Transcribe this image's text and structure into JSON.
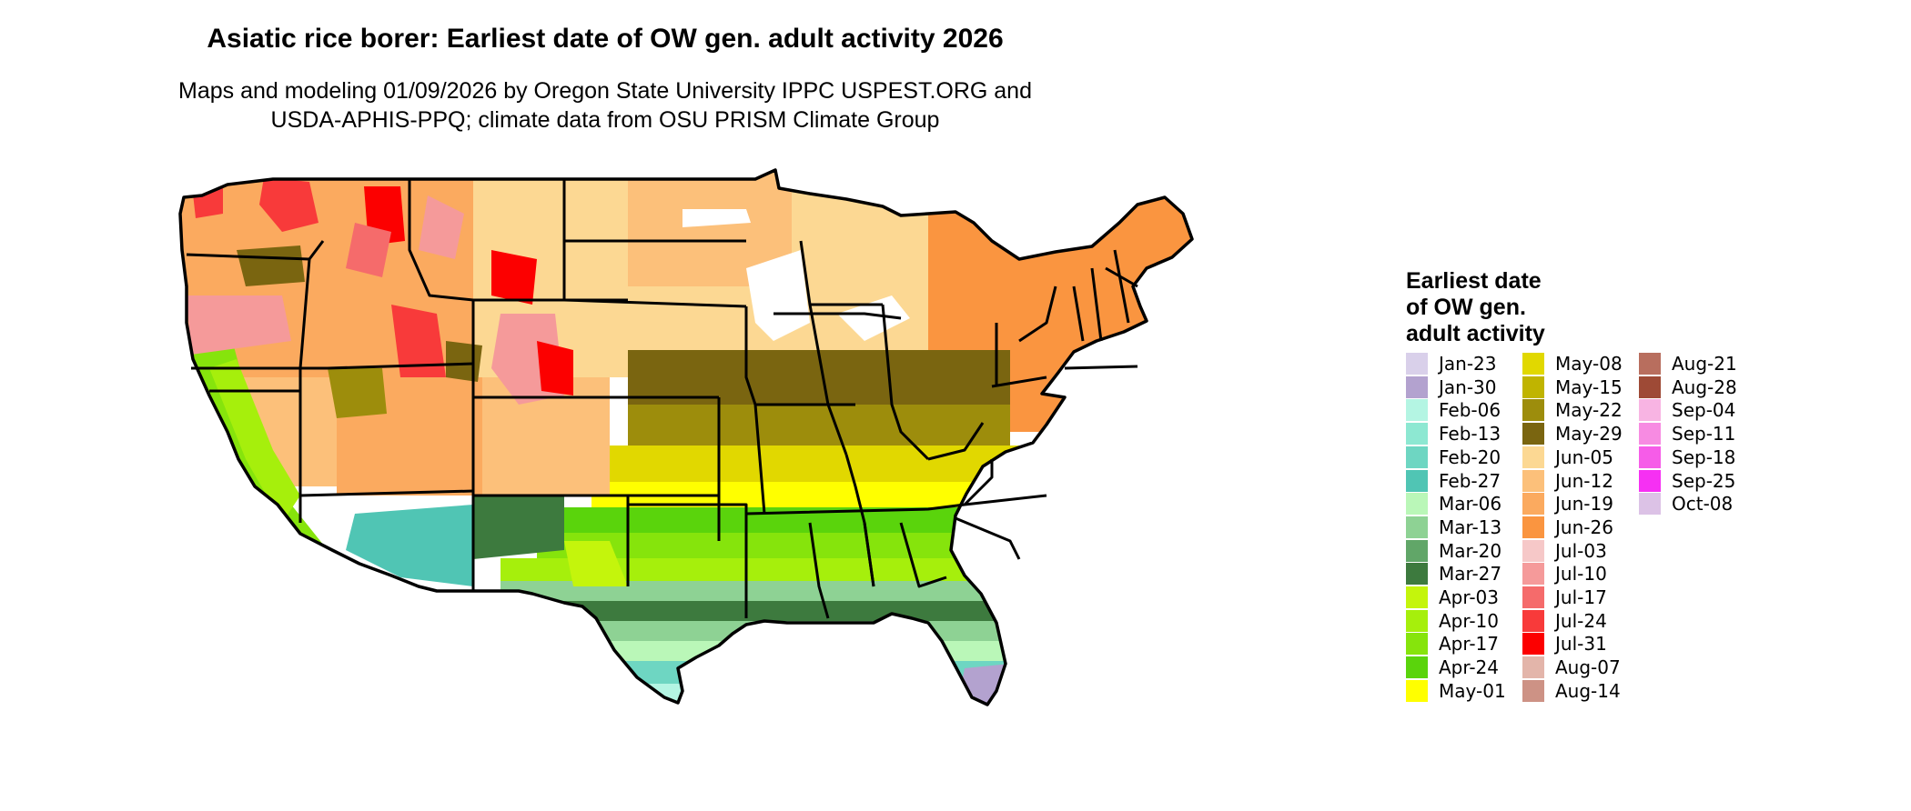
{
  "header": {
    "title": "Asiatic rice borer: Earliest date of OW gen. adult activity 2026",
    "subtitle_line1": "Maps and modeling 01/09/2026 by Oregon State University IPPC USPEST.ORG and",
    "subtitle_line2": "USDA-APHIS-PPQ; climate data from OSU PRISM Climate Group"
  },
  "legend": {
    "title_lines": [
      "Earliest date",
      "of OW gen.",
      "adult activity"
    ],
    "items": [
      {
        "label": "Jan-23",
        "color": "#d9d0ea"
      },
      {
        "label": "Jan-30",
        "color": "#b3a2cf"
      },
      {
        "label": "Feb-06",
        "color": "#b4f5e3"
      },
      {
        "label": "Feb-13",
        "color": "#8de8d2"
      },
      {
        "label": "Feb-20",
        "color": "#6ed6c2"
      },
      {
        "label": "Feb-27",
        "color": "#50c5b4"
      },
      {
        "label": "Mar-06",
        "color": "#baf7b8"
      },
      {
        "label": "Mar-13",
        "color": "#8ed294"
      },
      {
        "label": "Mar-20",
        "color": "#61a668"
      },
      {
        "label": "Mar-27",
        "color": "#3d7a3e"
      },
      {
        "label": "Apr-03",
        "color": "#c4f50c"
      },
      {
        "label": "Apr-10",
        "color": "#a6ef0c"
      },
      {
        "label": "Apr-17",
        "color": "#86e40c"
      },
      {
        "label": "Apr-24",
        "color": "#5ad40c"
      },
      {
        "label": "May-01",
        "color": "#ffff00"
      },
      {
        "label": "May-08",
        "color": "#e1d800"
      },
      {
        "label": "May-15",
        "color": "#c0b400"
      },
      {
        "label": "May-22",
        "color": "#9d8d0c"
      },
      {
        "label": "May-29",
        "color": "#7a6510"
      },
      {
        "label": "Jun-05",
        "color": "#fcd893"
      },
      {
        "label": "Jun-12",
        "color": "#fcc07a"
      },
      {
        "label": "Jun-19",
        "color": "#fbaa5f"
      },
      {
        "label": "Jun-26",
        "color": "#fa9540"
      },
      {
        "label": "Jul-03",
        "color": "#f6c8c8"
      },
      {
        "label": "Jul-10",
        "color": "#f59a9a"
      },
      {
        "label": "Jul-17",
        "color": "#f56b6b"
      },
      {
        "label": "Jul-24",
        "color": "#f83a3a"
      },
      {
        "label": "Jul-31",
        "color": "#fc0000"
      },
      {
        "label": "Aug-07",
        "color": "#e3b5aa"
      },
      {
        "label": "Aug-14",
        "color": "#cd9285"
      },
      {
        "label": "Aug-21",
        "color": "#b86e5e"
      },
      {
        "label": "Aug-28",
        "color": "#9e4a36"
      },
      {
        "label": "Sep-04",
        "color": "#f8b4e3"
      },
      {
        "label": "Sep-11",
        "color": "#f78be2"
      },
      {
        "label": "Sep-18",
        "color": "#f65ce8"
      },
      {
        "label": "Sep-25",
        "color": "#f630f3"
      },
      {
        "label": "Oct-08",
        "color": "#dcc2e6"
      }
    ]
  }
}
